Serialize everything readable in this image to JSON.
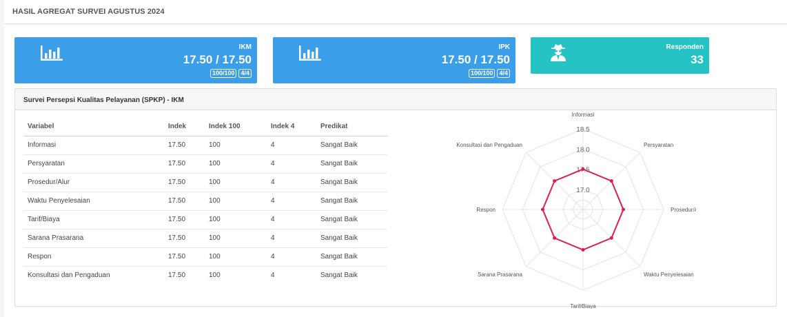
{
  "page": {
    "title": "HASIL AGREGAT SURVEI AGUSTUS 2024"
  },
  "cards": [
    {
      "label": "IKM",
      "value": "17.50 / 17.50",
      "badge1": "100/100",
      "badge2": "4/4",
      "icon": "bar-chart-icon",
      "color": "#3a9ee8"
    },
    {
      "label": "IPK",
      "value": "17.50 / 17.50",
      "badge1": "100/100",
      "badge2": "4/4",
      "icon": "bar-chart-icon",
      "color": "#3a9ee8"
    },
    {
      "label": "Responden",
      "value": "33",
      "icon": "user-secret-icon",
      "color": "#25c3c3"
    }
  ],
  "panel": {
    "title": "Survei Persepsi Kualitas Pelayanan (SPKP) - IKM",
    "headers": [
      "Variabel",
      "Indek",
      "Indek 100",
      "Indek 4",
      "Predikat"
    ],
    "rows": [
      [
        "Informasi",
        "17.50",
        "100",
        "4",
        "Sangat Baik"
      ],
      [
        "Persyaratan",
        "17.50",
        "100",
        "4",
        "Sangat Baik"
      ],
      [
        "Prosedur/Alur",
        "17.50",
        "100",
        "4",
        "Sangat Baik"
      ],
      [
        "Waktu Penyelesaian",
        "17.50",
        "100",
        "4",
        "Sangat Baik"
      ],
      [
        "Tarif/Biaya",
        "17.50",
        "100",
        "4",
        "Sangat Baik"
      ],
      [
        "Sarana Prasarana",
        "17.50",
        "100",
        "4",
        "Sangat Baik"
      ],
      [
        "Respon",
        "17.50",
        "100",
        "4",
        "Sangat Baik"
      ],
      [
        "Konsultasi dan Pengaduan",
        "17.50",
        "100",
        "4",
        "Sangat Baik"
      ]
    ]
  },
  "chart_data": {
    "type": "radar",
    "categories": [
      "Informasi",
      "Persyaratan",
      "Prosedur/Alur",
      "Waktu Penyelesaian",
      "Tarif/Biaya",
      "Sarana Prasarana",
      "Respon",
      "Konsultasi dan Pengaduan"
    ],
    "series": [
      {
        "values": [
          17.5,
          17.5,
          17.5,
          17.5,
          17.5,
          17.5,
          17.5,
          17.5
        ],
        "color": "#dc1f4d"
      }
    ],
    "rlim": [
      16.5,
      18.5
    ],
    "ticks": [
      "17.0",
      "17.5",
      "18.0",
      "18.5"
    ],
    "grid": true,
    "legend": "none"
  }
}
